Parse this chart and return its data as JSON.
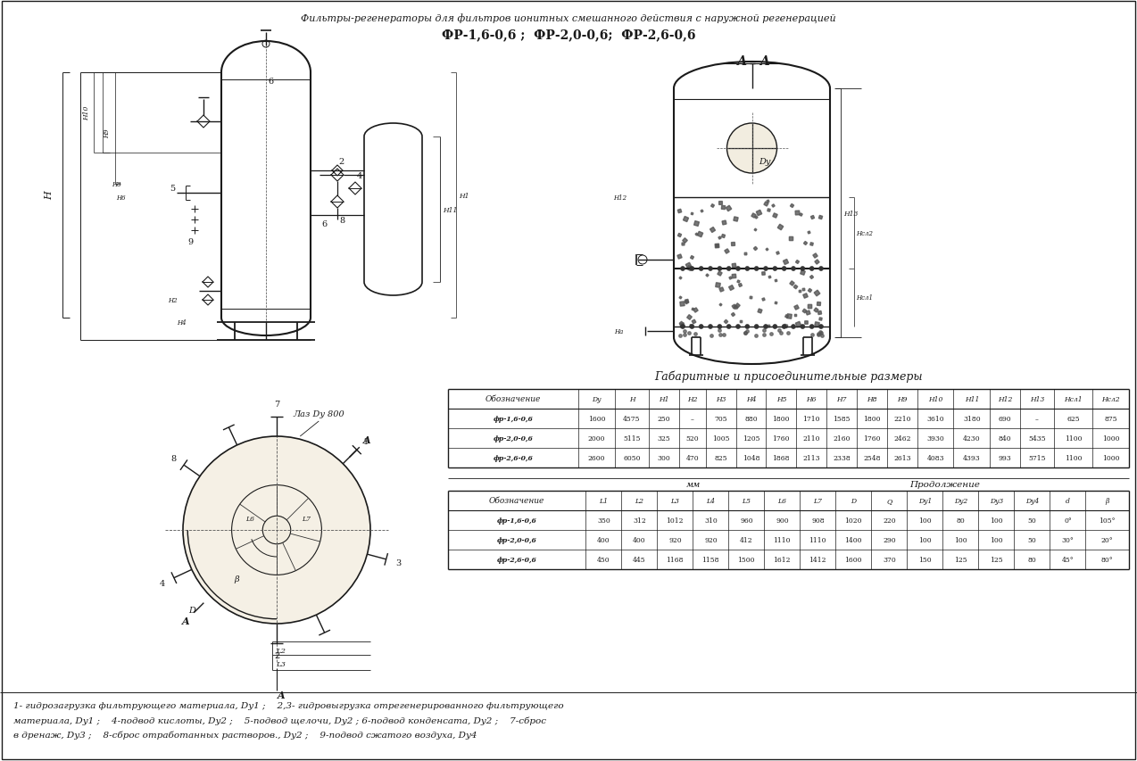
{
  "title_line1": "Фильтры-регенераторы для фильтров ионитных смешанного действия с наружной регенерацией",
  "title_line2": "ФР-1,6-0,6 ;  ФР-2,0-0,6;  ФР-2,6-0,6",
  "section_label": "А - А",
  "table1_title": "Габаритные и присоединительные размеры",
  "table1_header": [
    "Обозначение",
    "Dy",
    "H",
    "H1",
    "H2",
    "H3",
    "H4",
    "H5",
    "H6",
    "H7",
    "H8",
    "H9",
    "H10",
    "H11",
    "H12",
    "H13",
    "Hсл1",
    "Hсл2"
  ],
  "table1_rows": [
    [
      "фр-1,6-0,6",
      "1600",
      "4575",
      "250",
      "–",
      "705",
      "880",
      "1800",
      "1710",
      "1585",
      "1800",
      "2210",
      "3610",
      "3180",
      "690",
      "–",
      "625",
      "875"
    ],
    [
      "фр-2,0-0,6",
      "2000",
      "5115",
      "325",
      "520",
      "1005",
      "1205",
      "1760",
      "2110",
      "2160",
      "1760",
      "2462",
      "3930",
      "4230",
      "840",
      "5435",
      "1100",
      "1000"
    ],
    [
      "фр-2,6-0,6",
      "2600",
      "6050",
      "300",
      "470",
      "825",
      "1048",
      "1868",
      "2113",
      "2338",
      "2548",
      "2613",
      "4083",
      "4393",
      "993",
      "5715",
      "1100",
      "1000"
    ]
  ],
  "mm_label": "мм",
  "continuation_label": "Продолжение",
  "table2_header": [
    "Обозначение",
    "L1",
    "L2",
    "L3",
    "L4",
    "L5",
    "L6",
    "L7",
    "D",
    "Q",
    "Dy1",
    "Dy2",
    "Dy3",
    "Dy4",
    "d",
    "β"
  ],
  "table2_rows": [
    [
      "фр-1,6-0,6",
      "350",
      "312",
      "1012",
      "310",
      "960",
      "900",
      "908",
      "1020",
      "220",
      "100",
      "80",
      "100",
      "50",
      "0°",
      "105°"
    ],
    [
      "фр-2,0-0,6",
      "400",
      "400",
      "920",
      "920",
      "412",
      "1110",
      "1110",
      "1400",
      "290",
      "100",
      "100",
      "100",
      "50",
      "30°",
      "20°"
    ],
    [
      "фр-2,6-0,6",
      "450",
      "445",
      "1168",
      "1158",
      "1500",
      "1612",
      "1412",
      "1600",
      "370",
      "150",
      "125",
      "125",
      "80",
      "45°",
      "80°"
    ]
  ],
  "footnote_line1": "1- гидрозагрузка фильтрующего материала, Dy1 ;    2,3- гидровыгрузка отрегенерированного фильтрующего",
  "footnote_line2": "материала, Dy1 ;    4-подвод кислоты, Dy2 ;    5-подвод щелочи, Dy2 ; 6-подвод конденсата, Dy2 ;    7-сброс",
  "footnote_line3": "в дренаж, Dy3 ;    8-сброс отработанных растворов., Dy2 ;    9-подвод сжатого воздуха, Dy4",
  "bg_color": "#f2ede0",
  "line_color": "#1a1a1a"
}
